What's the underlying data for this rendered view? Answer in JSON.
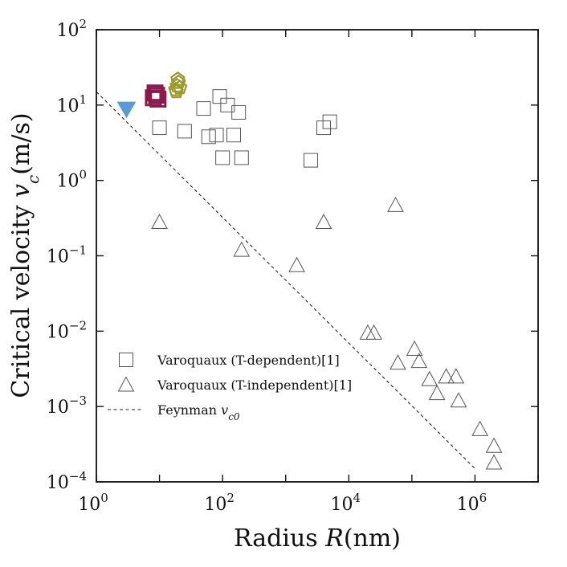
{
  "chart_data": {
    "type": "scatter",
    "xscale": "log",
    "yscale": "log",
    "xlim": [
      1,
      10000000
    ],
    "ylim": [
      0.0001,
      100
    ],
    "xlabel": {
      "prefix": "Radius ",
      "var": "R",
      "unit": "(nm)"
    },
    "ylabel": {
      "prefix": "Critical velocity ",
      "var": "v",
      "sub": "c",
      "unit": "(m/s)"
    },
    "xticks": [
      {
        "base": "10",
        "exp": "0",
        "value": 1
      },
      {
        "base": "10",
        "exp": "2",
        "value": 100
      },
      {
        "base": "10",
        "exp": "4",
        "value": 10000
      },
      {
        "base": "10",
        "exp": "6",
        "value": 1000000
      }
    ],
    "yticks": [
      {
        "base": "10",
        "exp": "2",
        "value": 100
      },
      {
        "base": "10",
        "exp": "1",
        "value": 10
      },
      {
        "base": "10",
        "exp": "0",
        "value": 1
      },
      {
        "base": "10",
        "exp": "−1",
        "value": 0.1
      },
      {
        "base": "10",
        "exp": "−2",
        "value": 0.01
      },
      {
        "base": "10",
        "exp": "−3",
        "value": 0.001
      },
      {
        "base": "10",
        "exp": "−4",
        "value": 0.0001
      }
    ],
    "legend": {
      "placement": "lower-left",
      "entries": [
        {
          "label": "Varoquaux (T-dependent)[1]",
          "marker": "square"
        },
        {
          "label": "Varoquaux (T-independent)[1]",
          "marker": "triangle"
        },
        {
          "label": "Feynman ",
          "var": "v",
          "sub": "c0",
          "marker": "dashed-line"
        }
      ]
    },
    "series": [
      {
        "name": "Varoquaux (T-dependent)[1]",
        "marker": "square",
        "color": "#555555",
        "points": [
          [
            10,
            5
          ],
          [
            25,
            4.5
          ],
          [
            50,
            9
          ],
          [
            60,
            3.8
          ],
          [
            80,
            4
          ],
          [
            90,
            13
          ],
          [
            100,
            2
          ],
          [
            120,
            10
          ],
          [
            150,
            4
          ],
          [
            180,
            8
          ],
          [
            200,
            2
          ],
          [
            2500,
            1.85
          ],
          [
            4000,
            5
          ],
          [
            5000,
            6
          ]
        ]
      },
      {
        "name": "Varoquaux (T-independent)[1]",
        "marker": "triangle",
        "color": "#555555",
        "points": [
          [
            10,
            0.28
          ],
          [
            200,
            0.12
          ],
          [
            1500,
            0.075
          ],
          [
            4000,
            0.28
          ],
          [
            20000,
            0.0095
          ],
          [
            25000,
            0.0095
          ],
          [
            55000,
            0.47
          ],
          [
            60000,
            0.0038
          ],
          [
            110000,
            0.0058
          ],
          [
            130000,
            0.004
          ],
          [
            190000,
            0.0023
          ],
          [
            250000,
            0.0015
          ],
          [
            350000,
            0.0025
          ],
          [
            500000,
            0.0025
          ],
          [
            550000,
            0.0012
          ],
          [
            1200000,
            0.0005
          ],
          [
            2000000,
            0.0003
          ],
          [
            2000000,
            0.00018
          ]
        ]
      },
      {
        "name": "blue",
        "marker": "triangle-down-filled",
        "color": "#5b9bd5",
        "points": [
          [
            3,
            9
          ]
        ]
      },
      {
        "name": "crimson",
        "marker": "square-bold",
        "color": "#8b1a4a",
        "points": [
          [
            8,
            12.5
          ],
          [
            9,
            13.5
          ],
          [
            8.5,
            14.5
          ],
          [
            9.5,
            12
          ]
        ]
      },
      {
        "name": "olive",
        "marker": "pentagon",
        "color": "#9a9a2c",
        "points": [
          [
            18,
            16
          ],
          [
            19,
            18
          ],
          [
            20,
            20
          ],
          [
            21,
            17
          ],
          [
            19.5,
            22
          ],
          [
            18.5,
            15
          ]
        ]
      }
    ],
    "reference_line": {
      "name": "Feynman v_c0",
      "style": "dashed",
      "points": [
        [
          1,
          15
        ],
        [
          1000000,
          0.00015
        ]
      ]
    }
  }
}
